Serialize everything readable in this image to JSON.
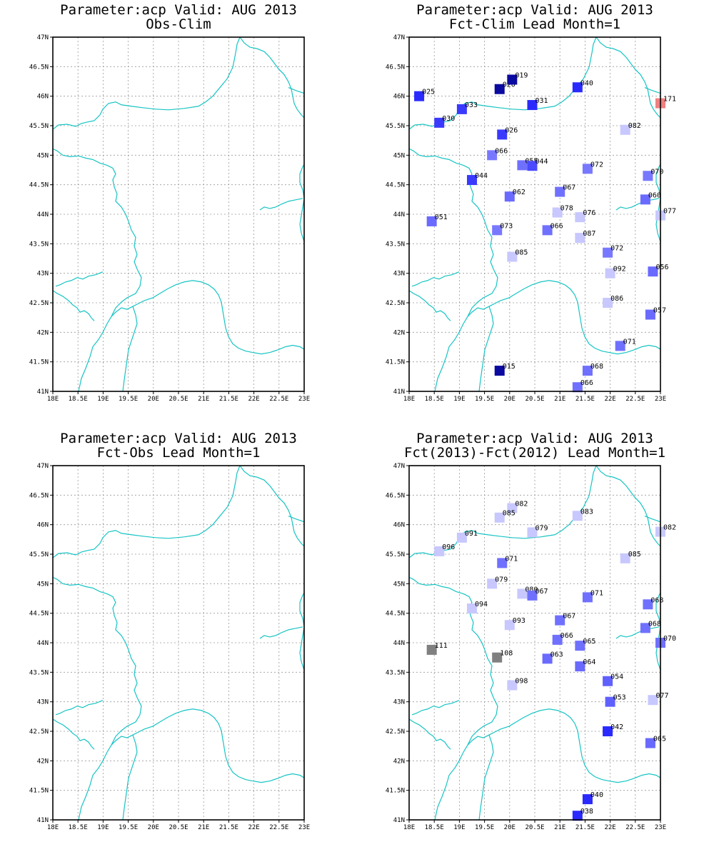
{
  "panels": [
    {
      "title_line1": "Parameter:acp Valid: AUG 2013",
      "title_line2": "Obs-Clim",
      "stations": []
    },
    {
      "title_line1": "Parameter:acp Valid: AUG 2013",
      "title_line2": "Fct-Clim Lead Month=1",
      "stations": [
        {
          "lon": 18.2,
          "lat": 46.0,
          "label": "025",
          "color": "#2a2aff"
        },
        {
          "lon": 19.05,
          "lat": 45.78,
          "label": "033",
          "color": "#3a3aff"
        },
        {
          "lon": 18.6,
          "lat": 45.55,
          "label": "030",
          "color": "#3a3aff"
        },
        {
          "lon": 19.8,
          "lat": 46.12,
          "label": "020",
          "color": "#0a0aa0"
        },
        {
          "lon": 20.05,
          "lat": 46.28,
          "label": "019",
          "color": "#0a0aa0"
        },
        {
          "lon": 21.35,
          "lat": 46.15,
          "label": "040",
          "color": "#2a2aff"
        },
        {
          "lon": 20.45,
          "lat": 45.85,
          "label": "031",
          "color": "#2a2aff"
        },
        {
          "lon": 23.0,
          "lat": 45.88,
          "label": "171",
          "color": "#f08080"
        },
        {
          "lon": 19.85,
          "lat": 45.35,
          "label": "026",
          "color": "#3a3aff"
        },
        {
          "lon": 22.3,
          "lat": 45.43,
          "label": "082",
          "color": "#c8c8ff"
        },
        {
          "lon": 19.65,
          "lat": 45.0,
          "label": "066",
          "color": "#7878ff"
        },
        {
          "lon": 20.25,
          "lat": 44.83,
          "label": "055",
          "color": "#7070ff"
        },
        {
          "lon": 20.45,
          "lat": 44.82,
          "label": "044",
          "color": "#4a4aff"
        },
        {
          "lon": 21.55,
          "lat": 44.77,
          "label": "072",
          "color": "#7878ff"
        },
        {
          "lon": 22.75,
          "lat": 44.65,
          "label": "070",
          "color": "#7878ff"
        },
        {
          "lon": 19.25,
          "lat": 44.58,
          "label": "044",
          "color": "#3a3aff"
        },
        {
          "lon": 20.0,
          "lat": 44.3,
          "label": "062",
          "color": "#6a6aff"
        },
        {
          "lon": 21.0,
          "lat": 44.38,
          "label": "067",
          "color": "#7070ff"
        },
        {
          "lon": 22.7,
          "lat": 44.25,
          "label": "060",
          "color": "#6a6aff"
        },
        {
          "lon": 20.95,
          "lat": 44.03,
          "label": "078",
          "color": "#c8c8ff"
        },
        {
          "lon": 21.4,
          "lat": 43.95,
          "label": "076",
          "color": "#c8c8ff"
        },
        {
          "lon": 23.0,
          "lat": 43.98,
          "label": "077",
          "color": "#c8c8ff"
        },
        {
          "lon": 18.45,
          "lat": 43.88,
          "label": "051",
          "color": "#6a6aff"
        },
        {
          "lon": 19.75,
          "lat": 43.73,
          "label": "073",
          "color": "#7878ff"
        },
        {
          "lon": 20.75,
          "lat": 43.73,
          "label": "066",
          "color": "#7070ff"
        },
        {
          "lon": 21.4,
          "lat": 43.6,
          "label": "087",
          "color": "#c8c8ff"
        },
        {
          "lon": 21.95,
          "lat": 43.35,
          "label": "072",
          "color": "#7878ff"
        },
        {
          "lon": 20.05,
          "lat": 43.28,
          "label": "085",
          "color": "#c8c8ff"
        },
        {
          "lon": 22.0,
          "lat": 43.0,
          "label": "092",
          "color": "#c8c8ff"
        },
        {
          "lon": 22.85,
          "lat": 43.03,
          "label": "056",
          "color": "#6a6aff"
        },
        {
          "lon": 21.95,
          "lat": 42.5,
          "label": "086",
          "color": "#c8c8ff"
        },
        {
          "lon": 22.8,
          "lat": 42.3,
          "label": "057",
          "color": "#6a6aff"
        },
        {
          "lon": 22.2,
          "lat": 41.77,
          "label": "071",
          "color": "#7070ff"
        },
        {
          "lon": 19.8,
          "lat": 41.35,
          "label": "015",
          "color": "#0a0aa0"
        },
        {
          "lon": 21.55,
          "lat": 41.35,
          "label": "068",
          "color": "#7070ff"
        },
        {
          "lon": 21.35,
          "lat": 41.07,
          "label": "066",
          "color": "#7070ff"
        }
      ]
    },
    {
      "title_line1": "Parameter:acp Valid: AUG 2013",
      "title_line2": "Fct-Obs Lead Month=1",
      "stations": []
    },
    {
      "title_line1": "Parameter:acp Valid: AUG 2013",
      "title_line2": "Fct(2013)-Fct(2012) Lead Month=1",
      "stations": [
        {
          "lon": 20.05,
          "lat": 46.28,
          "label": "082",
          "color": "#c8c8ff"
        },
        {
          "lon": 19.8,
          "lat": 46.12,
          "label": "085",
          "color": "#c8c8ff"
        },
        {
          "lon": 21.35,
          "lat": 46.15,
          "label": "083",
          "color": "#c8c8ff"
        },
        {
          "lon": 23.0,
          "lat": 45.88,
          "label": "082",
          "color": "#c8c8ff"
        },
        {
          "lon": 19.05,
          "lat": 45.78,
          "label": "091",
          "color": "#c8c8ff"
        },
        {
          "lon": 20.45,
          "lat": 45.87,
          "label": "079",
          "color": "#c8c8ff"
        },
        {
          "lon": 18.6,
          "lat": 45.55,
          "label": "096",
          "color": "#c8c8ff"
        },
        {
          "lon": 22.3,
          "lat": 45.43,
          "label": "085",
          "color": "#c8c8ff"
        },
        {
          "lon": 19.85,
          "lat": 45.35,
          "label": "071",
          "color": "#7070ff"
        },
        {
          "lon": 19.65,
          "lat": 45.0,
          "label": "079",
          "color": "#c8c8ff"
        },
        {
          "lon": 20.25,
          "lat": 44.83,
          "label": "080",
          "color": "#c8c8ff"
        },
        {
          "lon": 20.45,
          "lat": 44.8,
          "label": "067",
          "color": "#7070ff"
        },
        {
          "lon": 21.55,
          "lat": 44.77,
          "label": "071",
          "color": "#7070ff"
        },
        {
          "lon": 22.75,
          "lat": 44.65,
          "label": "068",
          "color": "#7070ff"
        },
        {
          "lon": 19.25,
          "lat": 44.58,
          "label": "094",
          "color": "#c8c8ff"
        },
        {
          "lon": 21.0,
          "lat": 44.38,
          "label": "067",
          "color": "#7070ff"
        },
        {
          "lon": 20.0,
          "lat": 44.3,
          "label": "093",
          "color": "#c8c8ff"
        },
        {
          "lon": 22.7,
          "lat": 44.25,
          "label": "068",
          "color": "#7070ff"
        },
        {
          "lon": 20.95,
          "lat": 44.05,
          "label": "066",
          "color": "#7070ff"
        },
        {
          "lon": 21.4,
          "lat": 43.95,
          "label": "065",
          "color": "#7070ff"
        },
        {
          "lon": 23.0,
          "lat": 44.0,
          "label": "070",
          "color": "#7070ff"
        },
        {
          "lon": 18.45,
          "lat": 43.88,
          "label": "111",
          "color": "#808080"
        },
        {
          "lon": 19.75,
          "lat": 43.75,
          "label": "108",
          "color": "#808080"
        },
        {
          "lon": 20.75,
          "lat": 43.73,
          "label": "063",
          "color": "#6a6aff"
        },
        {
          "lon": 21.4,
          "lat": 43.6,
          "label": "064",
          "color": "#6a6aff"
        },
        {
          "lon": 21.95,
          "lat": 43.35,
          "label": "054",
          "color": "#6060ff"
        },
        {
          "lon": 20.05,
          "lat": 43.28,
          "label": "098",
          "color": "#c8c8ff"
        },
        {
          "lon": 22.0,
          "lat": 43.0,
          "label": "053",
          "color": "#6060ff"
        },
        {
          "lon": 22.85,
          "lat": 43.03,
          "label": "077",
          "color": "#c8c8ff"
        },
        {
          "lon": 21.95,
          "lat": 42.5,
          "label": "042",
          "color": "#2a2aff"
        },
        {
          "lon": 22.8,
          "lat": 42.3,
          "label": "065",
          "color": "#6a6aff"
        },
        {
          "lon": 21.55,
          "lat": 41.35,
          "label": "040",
          "color": "#2a2aff"
        },
        {
          "lon": 21.35,
          "lat": 41.07,
          "label": "038",
          "color": "#2a2aff"
        }
      ]
    }
  ],
  "map": {
    "lon_range": [
      18,
      23
    ],
    "lat_range": [
      41,
      47
    ],
    "lon_ticks": [
      "18E",
      "18.5E",
      "19E",
      "19.5E",
      "20E",
      "20.5E",
      "21E",
      "21.5E",
      "22E",
      "22.5E",
      "23E"
    ],
    "lat_ticks": [
      "41N",
      "41.5N",
      "42N",
      "42.5N",
      "43N",
      "43.5N",
      "44N",
      "44.5N",
      "45N",
      "45.5N",
      "46N",
      "46.5N",
      "47N"
    ],
    "grid": "dotted",
    "border_color": "#18c4c4"
  }
}
